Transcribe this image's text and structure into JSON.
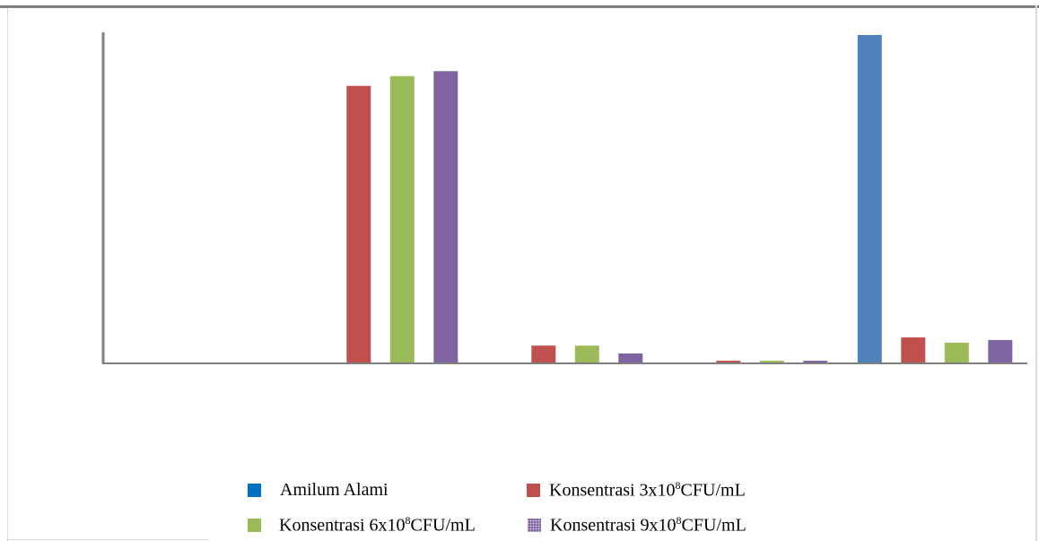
{
  "chart_data": {
    "type": "bar",
    "categories": [
      "",
      "",
      "",
      "",
      ""
    ],
    "series": [
      {
        "name": "Amilum Alami",
        "color": "#4f81bd",
        "values": [
          0,
          0,
          0,
          0,
          100
        ]
      },
      {
        "name": "Konsentrasi 3x10⁸CFU/mL",
        "color": "#c0504d",
        "values": [
          0,
          84.5,
          5.4,
          0.8,
          7.9
        ]
      },
      {
        "name": "Konsentrasi 6x10⁸CFU/mL",
        "color": "#9bbb59",
        "values": [
          0,
          87.5,
          5.4,
          0.8,
          6.3
        ]
      },
      {
        "name": "Konsentrasi 9x10⁸CFU/mL",
        "color": "#8064a2",
        "values": [
          0,
          89.0,
          3.0,
          0.8,
          7.1
        ]
      }
    ],
    "ylim": [
      0,
      100
    ],
    "grid": false,
    "legend_position": "bottom"
  },
  "legend": [
    {
      "prefix": "Amilum Alami",
      "exp": "",
      "suffix": ""
    },
    {
      "prefix": "Konsentrasi 3x10",
      "exp": "8",
      "suffix": "CFU/mL"
    },
    {
      "prefix": "Konsentrasi 6x10",
      "exp": "8",
      "suffix": "CFU/mL"
    },
    {
      "prefix": "Konsentrasi 9x10",
      "exp": "8",
      "suffix": "CFU/mL"
    }
  ]
}
